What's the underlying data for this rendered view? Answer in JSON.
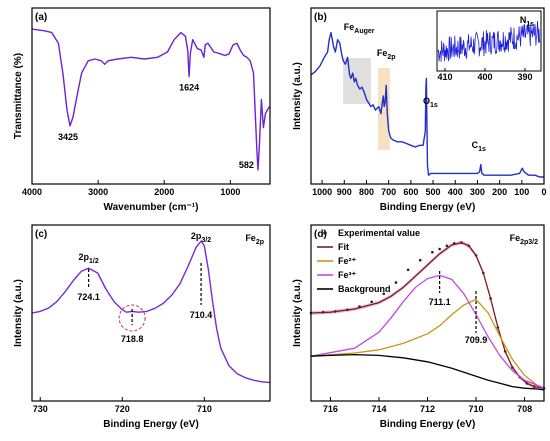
{
  "chart_data": [
    {
      "panel": "(a)",
      "type": "line",
      "xlabel": "Wavenumber (cm⁻¹)",
      "ylabel": "Transmittance (%)",
      "xlim": [
        4000,
        400
      ],
      "x_ticks": [
        4000,
        3000,
        2000,
        1000
      ],
      "annotations": [
        {
          "text": "3425",
          "x": 3425
        },
        {
          "text": "1624",
          "x": 1624
        },
        {
          "text": "582",
          "x": 582
        }
      ],
      "series": [
        {
          "color": "#6a22d8",
          "x": [
            4000,
            3800,
            3700,
            3600,
            3530,
            3470,
            3425,
            3380,
            3320,
            3250,
            3150,
            3050,
            2950,
            2900,
            2850,
            2700,
            2500,
            2300,
            2100,
            1950,
            1850,
            1750,
            1680,
            1645,
            1624,
            1605,
            1570,
            1500,
            1440,
            1400,
            1380,
            1340,
            1250,
            1150,
            1080,
            1020,
            960,
            900,
            850,
            800,
            750,
            700,
            650,
            600,
            582,
            560,
            530,
            500,
            470,
            440,
            410
          ],
          "y": [
            88,
            87,
            86,
            80,
            62,
            42,
            33,
            38,
            50,
            63,
            70,
            71,
            70,
            68,
            70,
            71,
            72,
            71,
            72,
            75,
            82,
            86,
            84,
            76,
            61,
            74,
            82,
            77,
            76,
            72,
            79,
            80,
            75,
            74,
            73,
            74,
            79,
            80,
            76,
            73,
            72,
            70,
            63,
            20,
            8,
            22,
            48,
            32,
            40,
            42,
            44
          ]
        }
      ]
    },
    {
      "panel": "(b)",
      "type": "line",
      "xlabel": "Binding Energy (eV)",
      "ylabel": "Intensity (a.u.)",
      "xlim": [
        1050,
        0
      ],
      "x_ticks": [
        1000,
        900,
        800,
        700,
        600,
        500,
        400,
        300,
        200,
        100,
        0
      ],
      "annotations": [
        {
          "text": "Fe",
          "sub": "Auger",
          "x": 860
        },
        {
          "text": "Fe",
          "sub": "2p",
          "x": 711
        },
        {
          "text": "O",
          "sub": "1s",
          "x": 530
        },
        {
          "text": "C",
          "sub": "1s",
          "x": 285
        }
      ],
      "highlight_bands": [
        {
          "x0": 905,
          "x1": 780,
          "color": "#d9d9d9"
        },
        {
          "x0": 748,
          "x1": 695,
          "color": "#f5dcb8"
        }
      ],
      "series": [
        {
          "color": "#2230c8",
          "x": [
            1050,
            1030,
            1010,
            990,
            975,
            968,
            960,
            948,
            940,
            930,
            920,
            912,
            905,
            895,
            885,
            876,
            870,
            862,
            855,
            848,
            840,
            830,
            820,
            810,
            800,
            790,
            780,
            770,
            760,
            745,
            735,
            728,
            724,
            720,
            716,
            711,
            706,
            700,
            690,
            680,
            660,
            640,
            620,
            600,
            580,
            560,
            545,
            535,
            532,
            530,
            528,
            525,
            520,
            510,
            500,
            450,
            400,
            350,
            300,
            290,
            285,
            280,
            270,
            250,
            200,
            150,
            110,
            98,
            90,
            70,
            40,
            20,
            0
          ],
          "y": [
            0.62,
            0.64,
            0.67,
            0.72,
            0.75,
            0.82,
            0.86,
            0.78,
            0.75,
            0.82,
            0.8,
            0.74,
            0.7,
            0.68,
            0.72,
            0.62,
            0.6,
            0.63,
            0.58,
            0.6,
            0.56,
            0.54,
            0.55,
            0.52,
            0.48,
            0.46,
            0.44,
            0.45,
            0.42,
            0.44,
            0.4,
            0.47,
            0.5,
            0.44,
            0.46,
            0.56,
            0.4,
            0.3,
            0.26,
            0.25,
            0.24,
            0.24,
            0.23,
            0.22,
            0.21,
            0.22,
            0.22,
            0.3,
            0.55,
            0.6,
            0.4,
            0.1,
            0.05,
            0.06,
            0.06,
            0.06,
            0.06,
            0.06,
            0.06,
            0.07,
            0.11,
            0.06,
            0.05,
            0.05,
            0.05,
            0.05,
            0.06,
            0.09,
            0.07,
            0.05,
            0.05,
            0.04,
            0.04
          ]
        }
      ],
      "inset": {
        "label": "N",
        "sub": "1s",
        "xlim": [
          412,
          386
        ],
        "x_ticks": [
          410,
          400,
          390
        ],
        "color": "#1f1fd8",
        "trend": "noisy, rising slightly toward lower binding energy"
      }
    },
    {
      "panel": "(c)",
      "type": "line",
      "title": "Fe",
      "title_sub": "2p",
      "xlabel": "Binding Energy (eV)",
      "ylabel": "Intensity (a.u.)",
      "xlim": [
        731,
        702
      ],
      "x_ticks": [
        730,
        720,
        710
      ],
      "annotations": [
        {
          "text": "2p",
          "sub": "1/2",
          "x": 724.1
        },
        {
          "text": "724.1",
          "x": 724.1
        },
        {
          "text": "718.8",
          "x": 718.8
        },
        {
          "text": "2p",
          "sub": "3/2",
          "x": 710.4
        },
        {
          "text": "710.4",
          "x": 710.4
        }
      ],
      "series": [
        {
          "color": "#7a2ad6",
          "x": [
            731,
            730,
            729,
            728,
            727,
            726,
            725,
            724.1,
            723,
            722,
            721,
            720,
            719.5,
            718.8,
            718,
            717,
            716,
            715,
            714,
            713,
            712,
            711,
            710.4,
            710,
            709.5,
            709,
            708.5,
            708,
            707,
            706,
            705,
            704,
            703,
            702
          ],
          "y": [
            0.55,
            0.56,
            0.58,
            0.62,
            0.68,
            0.75,
            0.81,
            0.83,
            0.8,
            0.7,
            0.62,
            0.57,
            0.555,
            0.56,
            0.555,
            0.56,
            0.58,
            0.61,
            0.66,
            0.73,
            0.84,
            0.96,
            1.0,
            0.97,
            0.82,
            0.62,
            0.45,
            0.33,
            0.22,
            0.17,
            0.145,
            0.13,
            0.12,
            0.115
          ]
        }
      ]
    },
    {
      "panel": "(d)",
      "type": "line",
      "title": "Fe",
      "title_sub": "2p3/2",
      "xlabel": "Binding Energy (eV)",
      "ylabel": "Intensity (a.u.)",
      "xlim": [
        716.8,
        707.2
      ],
      "x_ticks": [
        716,
        714,
        712,
        710,
        708
      ],
      "legend_placement": "top-left",
      "annotations": [
        {
          "text": "711.1",
          "x": 711.5
        },
        {
          "text": "709.9",
          "x": 710.0
        }
      ],
      "series": [
        {
          "name": "Experimental value",
          "style": "dots",
          "color": "#222222",
          "x": [
            716.8,
            716.3,
            715.8,
            715.3,
            714.8,
            714.3,
            713.8,
            713.3,
            712.8,
            712.3,
            711.8,
            711.5,
            711.2,
            710.9,
            710.6,
            710.3,
            710.0,
            709.7,
            709.4,
            709.1,
            708.8,
            708.5,
            708.2,
            707.9,
            707.6,
            707.2
          ],
          "y": [
            0.55,
            0.555,
            0.56,
            0.57,
            0.59,
            0.62,
            0.67,
            0.74,
            0.82,
            0.88,
            0.93,
            0.95,
            0.97,
            0.985,
            0.99,
            0.97,
            0.91,
            0.8,
            0.64,
            0.46,
            0.31,
            0.21,
            0.15,
            0.11,
            0.09,
            0.08
          ]
        },
        {
          "name": "Fit",
          "color": "#7a1e1e",
          "x": [
            716.8,
            716,
            715,
            714,
            713.5,
            713,
            712.5,
            712,
            711.5,
            711,
            710.6,
            710.3,
            710,
            709.7,
            709.4,
            709.1,
            708.8,
            708.5,
            708.2,
            707.9,
            707.6,
            707.2
          ],
          "y": [
            0.55,
            0.555,
            0.575,
            0.615,
            0.655,
            0.71,
            0.78,
            0.85,
            0.92,
            0.975,
            0.99,
            0.97,
            0.91,
            0.8,
            0.64,
            0.46,
            0.31,
            0.21,
            0.15,
            0.11,
            0.09,
            0.08
          ]
        },
        {
          "name": "Fe²⁺",
          "color": "#c89612",
          "x": [
            716.8,
            715,
            714,
            713,
            712,
            711.5,
            711,
            710.5,
            710,
            709.5,
            709,
            708.5,
            708,
            707.5,
            707.2
          ],
          "y": [
            0.28,
            0.3,
            0.32,
            0.36,
            0.42,
            0.47,
            0.54,
            0.6,
            0.635,
            0.55,
            0.4,
            0.26,
            0.16,
            0.1,
            0.08
          ]
        },
        {
          "name": "Fe³⁺",
          "color": "#c24ae8",
          "x": [
            716.8,
            715,
            714,
            713.5,
            713,
            712.5,
            712,
            711.5,
            711,
            710.5,
            710,
            709.5,
            709,
            708.5,
            708,
            707.5,
            707.2
          ],
          "y": [
            0.28,
            0.33,
            0.43,
            0.52,
            0.62,
            0.71,
            0.765,
            0.785,
            0.76,
            0.67,
            0.54,
            0.4,
            0.28,
            0.19,
            0.13,
            0.1,
            0.08
          ]
        },
        {
          "name": "Background",
          "color": "#000000",
          "x": [
            716.8,
            716,
            715,
            714,
            713,
            712,
            711,
            710,
            709.5,
            709,
            708.5,
            708,
            707.5,
            707.2
          ],
          "y": [
            0.28,
            0.285,
            0.29,
            0.285,
            0.27,
            0.245,
            0.205,
            0.155,
            0.13,
            0.11,
            0.09,
            0.08,
            0.075,
            0.07
          ]
        }
      ]
    }
  ]
}
